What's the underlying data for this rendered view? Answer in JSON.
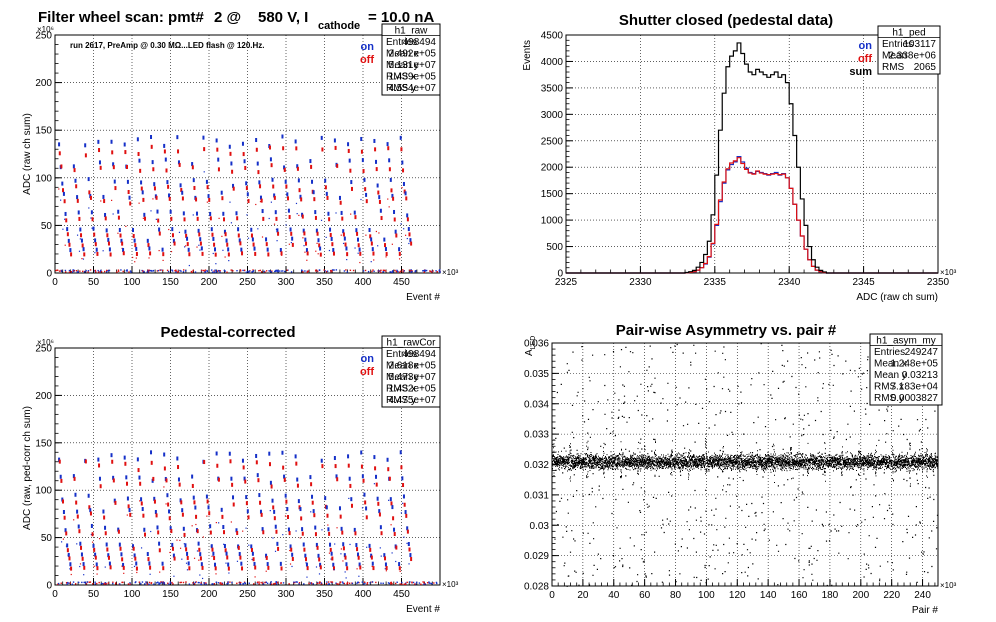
{
  "chart_data": [
    {
      "type": "scatter",
      "title_parts": [
        "Filter wheel scan: pmt#",
        "2 @",
        "580 V, I",
        "cathode",
        "= 10.0 nA"
      ],
      "annotation": "run 2617, PreAmp @ 0.30 MΩ...LED flash @  120.Hz.",
      "xlabel": "Event #",
      "ylabel": "ADC (raw ch sum)",
      "xlim": [
        0,
        500
      ],
      "ylim": [
        0,
        250
      ],
      "x_ticks": [
        0,
        50,
        100,
        150,
        200,
        250,
        300,
        350,
        400,
        450
      ],
      "y_ticks": [
        0,
        50,
        100,
        150,
        200,
        250
      ],
      "x_exponent": "×10³",
      "y_exponent": "×10⁶",
      "grid": true,
      "legend_position": "top-right",
      "legend": [
        {
          "label": "on",
          "color": "#1530c8"
        },
        {
          "label": "off",
          "color": "#e01010"
        }
      ],
      "stats_box": {
        "name": "h1_raw",
        "rows": [
          [
            "Entries",
            "498494"
          ],
          [
            "Mean x",
            "2.492e+05"
          ],
          [
            "Mean y",
            "5.131e+07"
          ],
          [
            "RMS x",
            "1.439e+05"
          ],
          [
            "RMS y",
            "4.554e+07"
          ]
        ]
      },
      "series": [
        {
          "name": "on",
          "color": "#1530c8",
          "level_means": [
            138,
            115,
            95,
            82,
            63,
            45,
            35,
            25
          ]
        },
        {
          "name": "off",
          "color": "#e01010",
          "level_means": [
            128,
            110,
            88,
            76,
            57,
            40,
            30,
            20
          ]
        }
      ]
    },
    {
      "type": "histogram",
      "title": "Shutter closed (pedestal data)",
      "xlabel": "ADC (raw ch sum)",
      "ylabel": "Events",
      "xlim": [
        2325,
        2350
      ],
      "ylim": [
        0,
        4500
      ],
      "x_ticks": [
        2325,
        2330,
        2335,
        2340,
        2345,
        2350
      ],
      "y_ticks": [
        0,
        500,
        1000,
        1500,
        2000,
        2500,
        3000,
        3500,
        4000,
        4500
      ],
      "x_exponent": "×10³",
      "grid": true,
      "legend_position": "top-right",
      "legend": [
        {
          "label": "on",
          "color": "#1530c8"
        },
        {
          "label": "off",
          "color": "#e01010"
        },
        {
          "label": "sum",
          "color": "#000000"
        }
      ],
      "stats_box": {
        "name": "h1_ped",
        "rows": [
          [
            "Entries",
            "103117"
          ],
          [
            "Mean",
            "2.338e+06"
          ],
          [
            "RMS",
            "2065"
          ]
        ]
      },
      "bin_edges_start": 2333.0,
      "bin_width": 0.25,
      "series": [
        {
          "name": "sum",
          "color": "#000000",
          "values": [
            10,
            25,
            50,
            110,
            200,
            350,
            600,
            1100,
            1850,
            2700,
            3400,
            3900,
            4100,
            4200,
            4350,
            4150,
            3950,
            3800,
            3750,
            3850,
            3800,
            3750,
            3700,
            3750,
            3800,
            3700,
            3750,
            3600,
            3200,
            2600,
            2000,
            1400,
            900,
            500,
            250,
            110,
            50,
            20
          ]
        },
        {
          "name": "on",
          "color": "#1530c8",
          "values": [
            5,
            12,
            25,
            55,
            100,
            170,
            300,
            550,
            900,
            1350,
            1700,
            1950,
            2050,
            2100,
            2200,
            2100,
            1980,
            1900,
            1880,
            1920,
            1900,
            1880,
            1850,
            1880,
            1900,
            1850,
            1880,
            1800,
            1600,
            1300,
            1000,
            700,
            450,
            250,
            125,
            55,
            25,
            10
          ]
        },
        {
          "name": "off",
          "color": "#e01010",
          "values": [
            5,
            12,
            25,
            55,
            100,
            180,
            310,
            560,
            920,
            1380,
            1720,
            1970,
            2080,
            2120,
            2180,
            2070,
            1960,
            1890,
            1870,
            1930,
            1890,
            1870,
            1860,
            1870,
            1880,
            1860,
            1870,
            1800,
            1600,
            1300,
            1000,
            700,
            450,
            250,
            125,
            55,
            25,
            10
          ]
        }
      ]
    },
    {
      "type": "scatter",
      "title": "Pedestal-corrected",
      "xlabel": "Event #",
      "ylabel": "ADC (raw, ped-corr ch sum)",
      "xlim": [
        0,
        500
      ],
      "ylim": [
        0,
        250
      ],
      "x_ticks": [
        0,
        50,
        100,
        150,
        200,
        250,
        300,
        350,
        400,
        450
      ],
      "y_ticks": [
        0,
        50,
        100,
        150,
        200,
        250
      ],
      "x_exponent": "×10³",
      "y_exponent": "×10⁶",
      "grid": true,
      "legend_position": "top-right",
      "legend": [
        {
          "label": "on",
          "color": "#1530c8"
        },
        {
          "label": "off",
          "color": "#e01010"
        }
      ],
      "stats_box": {
        "name": "h1_rawCor",
        "rows": [
          [
            "Entries",
            "498494"
          ],
          [
            "Mean x",
            "2.618e+05"
          ],
          [
            "Mean y",
            "5.473e+07"
          ],
          [
            "RMS x",
            "1.432e+05"
          ],
          [
            "RMS y",
            "4.475e+07"
          ]
        ]
      },
      "series": [
        {
          "name": "on",
          "color": "#1530c8",
          "level_means": [
            135,
            112,
            92,
            80,
            60,
            42,
            32,
            22
          ]
        },
        {
          "name": "off",
          "color": "#e01010",
          "level_means": [
            126,
            108,
            85,
            73,
            55,
            38,
            28,
            18
          ]
        }
      ]
    },
    {
      "type": "scatter",
      "title": "Pair-wise Asymmetry vs. pair #",
      "xlabel": "Pair #",
      "ylabel": "A_LED",
      "ylabel_main": "A",
      "ylabel_sub": "LED",
      "xlim": [
        0,
        250
      ],
      "ylim": [
        0.028,
        0.036
      ],
      "x_ticks": [
        0,
        20,
        40,
        60,
        80,
        100,
        120,
        140,
        160,
        180,
        200,
        220,
        240
      ],
      "y_ticks": [
        0.028,
        0.029,
        0.03,
        0.031,
        0.032,
        0.033,
        0.034,
        0.035,
        0.036
      ],
      "y_tick_labels": [
        "0.028",
        "0.029",
        "0.03",
        "0.031",
        "0.032",
        "0.033",
        "0.034",
        "0.035",
        "0.036"
      ],
      "x_exponent": "×10³",
      "grid": true,
      "stats_box": {
        "name": "h1_asym_my",
        "rows": [
          [
            "Entries",
            "249247"
          ],
          [
            "Mean x",
            "1.248e+05"
          ],
          [
            "Mean y",
            "0.03213"
          ],
          [
            "RMS x",
            "7.183e+04"
          ],
          [
            "RMS y",
            "0.0003827"
          ]
        ]
      },
      "series": [
        {
          "name": "",
          "color": "#000000",
          "center": 0.0321,
          "spread": 0.0004
        }
      ]
    }
  ]
}
